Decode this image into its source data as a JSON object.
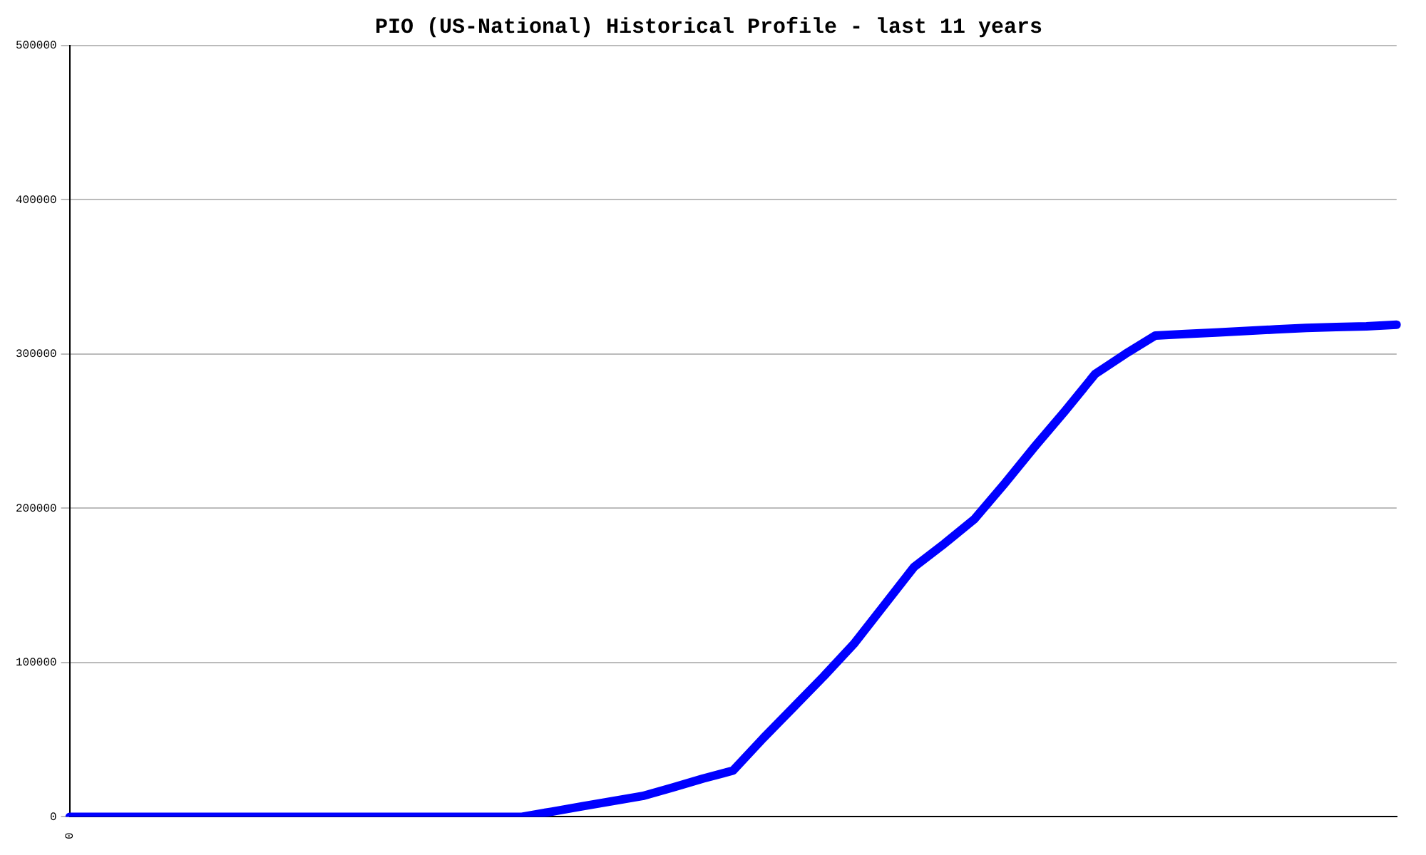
{
  "chart_data": {
    "type": "line",
    "title": "PIO (US-National) Historical Profile - last 11 years",
    "categories": [
      "0",
      null,
      null,
      null,
      null,
      null,
      null,
      null,
      null,
      null,
      null,
      null,
      null,
      null,
      null,
      null,
      null,
      null,
      null,
      null,
      null,
      null,
      null,
      null,
      null,
      null,
      null,
      null,
      null,
      null,
      null,
      null,
      null,
      null,
      null,
      null,
      null,
      null,
      null,
      null,
      null,
      null,
      null,
      null,
      null
    ],
    "series": [
      {
        "color": "#0000ff",
        "values": [
          0,
          0,
          0,
          0,
          0,
          0,
          0,
          0,
          0,
          0,
          0,
          0,
          0,
          0,
          0,
          0,
          3400,
          6800,
          10200,
          13500,
          19000,
          24800,
          30000,
          51000,
          71000,
          91000,
          112000,
          137000,
          162000,
          177000,
          193000,
          216000,
          240000,
          263000,
          287000,
          300000,
          312000,
          313000,
          314000,
          315000,
          316000,
          317000,
          317500,
          318000,
          319000
        ]
      }
    ],
    "ylim": [
      0,
      500000
    ],
    "yticks": [
      0,
      100000,
      200000,
      300000,
      400000,
      500000
    ],
    "grid": "y",
    "legend": false,
    "marker": "none",
    "line_style": "solid"
  }
}
